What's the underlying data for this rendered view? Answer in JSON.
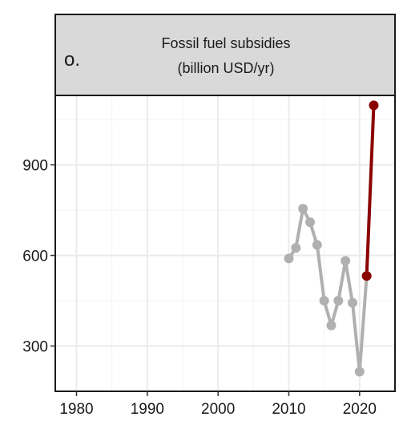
{
  "panel": {
    "letter": "o.",
    "title_line1": "Fossil fuel subsidies",
    "title_line2": "(billion USD/yr)"
  },
  "chart_data": {
    "type": "line",
    "title": "Fossil fuel subsidies (billion USD/yr)",
    "xlabel": "",
    "ylabel": "",
    "xlim": [
      1977,
      2025
    ],
    "ylim": [
      150,
      1130
    ],
    "x_ticks": [
      1980,
      1990,
      2000,
      2010,
      2020
    ],
    "y_ticks": [
      300,
      600,
      900
    ],
    "grid": true,
    "legend": "none",
    "series": [
      {
        "color": "#b0b0b0",
        "x": [
          2010,
          2011,
          2012,
          2013,
          2014,
          2015,
          2016,
          2017,
          2018,
          2019,
          2020,
          2021
        ],
        "y": [
          590,
          625,
          755,
          710,
          635,
          450,
          368,
          450,
          582,
          443,
          215,
          532
        ]
      },
      {
        "color": "#8b0000",
        "x": [
          2021,
          2022
        ],
        "y": [
          532,
          1097
        ]
      }
    ]
  }
}
